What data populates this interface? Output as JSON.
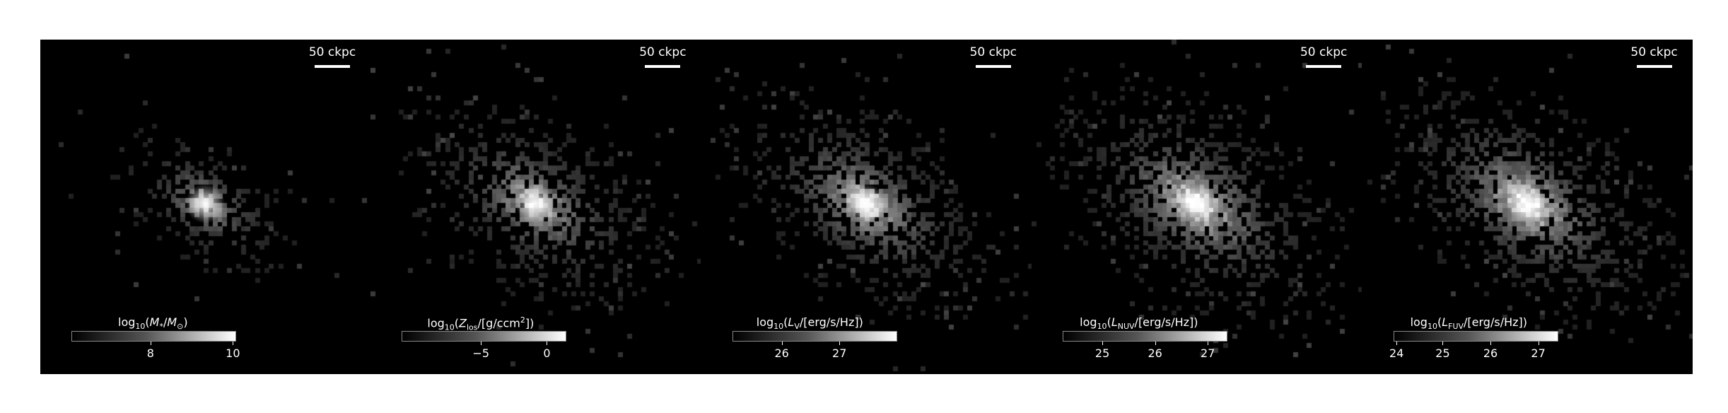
{
  "panels": [
    {
      "scale_label": "50 ckpc",
      "colorbar": {
        "title_html": "log<sub>10</sub>(<i>M</i><sub>*</sub>/<i>M</i><sub>⊙</sub>)",
        "ticks": [
          "8",
          "10"
        ],
        "tick_positions": [
          0.48,
          0.98
        ]
      },
      "spread": 0.45,
      "density": 0.9
    },
    {
      "scale_label": "50 ckpc",
      "colorbar": {
        "title_html": "log<sub>10</sub>(<i>Z</i><sub>los</sub>/[g/ccm<sup>2</sup>])",
        "ticks": [
          "−5",
          "0"
        ],
        "tick_positions": [
          0.48,
          0.88
        ]
      },
      "spread": 0.8,
      "density": 1.0
    },
    {
      "scale_label": "50 ckpc",
      "colorbar": {
        "title_html": "log<sub>10</sub>(<i>L</i><sub>V</sub>/[erg/s/Hz])",
        "ticks": [
          "26",
          "27"
        ],
        "tick_positions": [
          0.3,
          0.65
        ]
      },
      "spread": 0.8,
      "density": 1.1
    },
    {
      "scale_label": "50 ckpc",
      "colorbar": {
        "title_html": "log<sub>10</sub>(<i>L</i><sub>NUV</sub>/[erg/s/Hz])",
        "ticks": [
          "25",
          "26",
          "27"
        ],
        "tick_positions": [
          0.24,
          0.56,
          0.88
        ]
      },
      "spread": 0.85,
      "density": 1.25
    },
    {
      "scale_label": "50 ckpc",
      "colorbar": {
        "title_html": "log<sub>10</sub>(<i>L</i><sub>FUV</sub>/[erg/s/Hz])",
        "ticks": [
          "24",
          "25",
          "26",
          "27"
        ],
        "tick_positions": [
          0.02,
          0.3,
          0.59,
          0.88
        ]
      },
      "spread": 0.85,
      "density": 1.25
    }
  ]
}
